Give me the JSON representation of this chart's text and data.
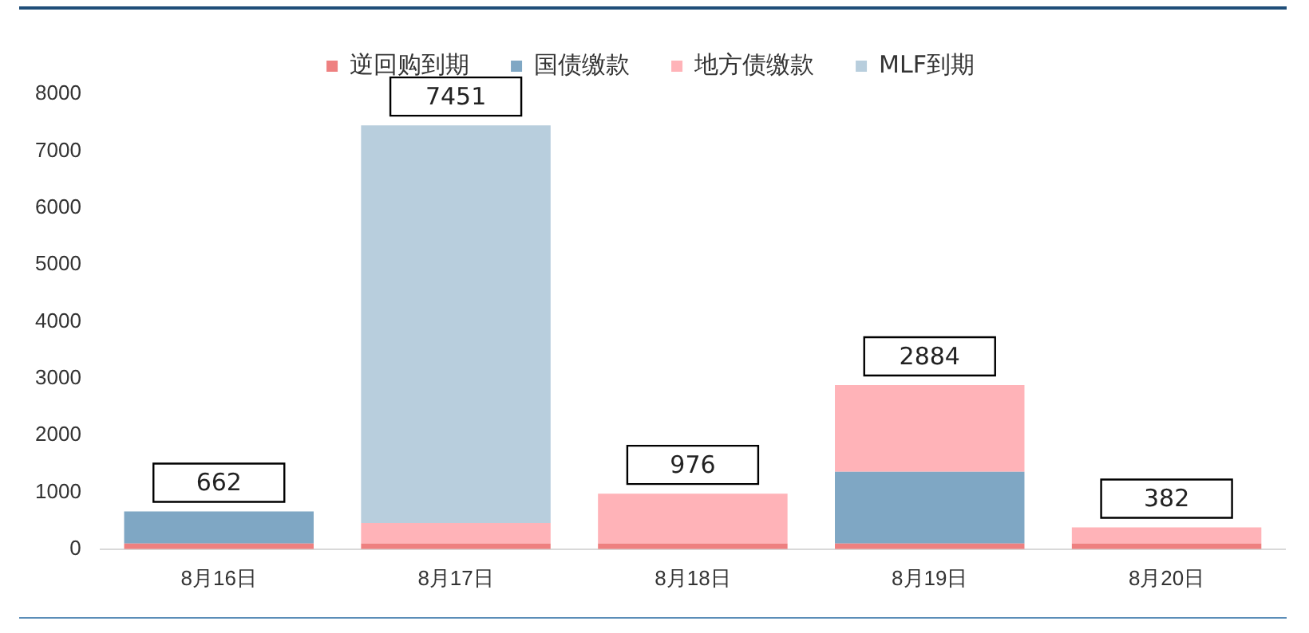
{
  "chart_data": {
    "type": "bar",
    "stacked": true,
    "categories": [
      "8月16日",
      "8月17日",
      "8月18日",
      "8月19日",
      "8月20日"
    ],
    "series": [
      {
        "name": "逆回购到期",
        "color": "#ee8080",
        "values": [
          100,
          100,
          100,
          100,
          100
        ]
      },
      {
        "name": "国债缴款",
        "color": "#7fa7c4",
        "values": [
          562,
          0,
          0,
          1260,
          0
        ]
      },
      {
        "name": "地方债缴款",
        "color": "#ffb3b8",
        "values": [
          0,
          360,
          876,
          1524,
          282
        ]
      },
      {
        "name": "MLF到期",
        "color": "#b8cedd",
        "values": [
          0,
          6991,
          0,
          0,
          0
        ]
      }
    ],
    "totals": [
      "662",
      "7451",
      "976",
      "2884",
      "382"
    ],
    "ylim": [
      0,
      8000
    ],
    "yticks": [
      0,
      1000,
      2000,
      3000,
      4000,
      5000,
      6000,
      7000,
      8000
    ],
    "grid": false,
    "legend": "top"
  }
}
